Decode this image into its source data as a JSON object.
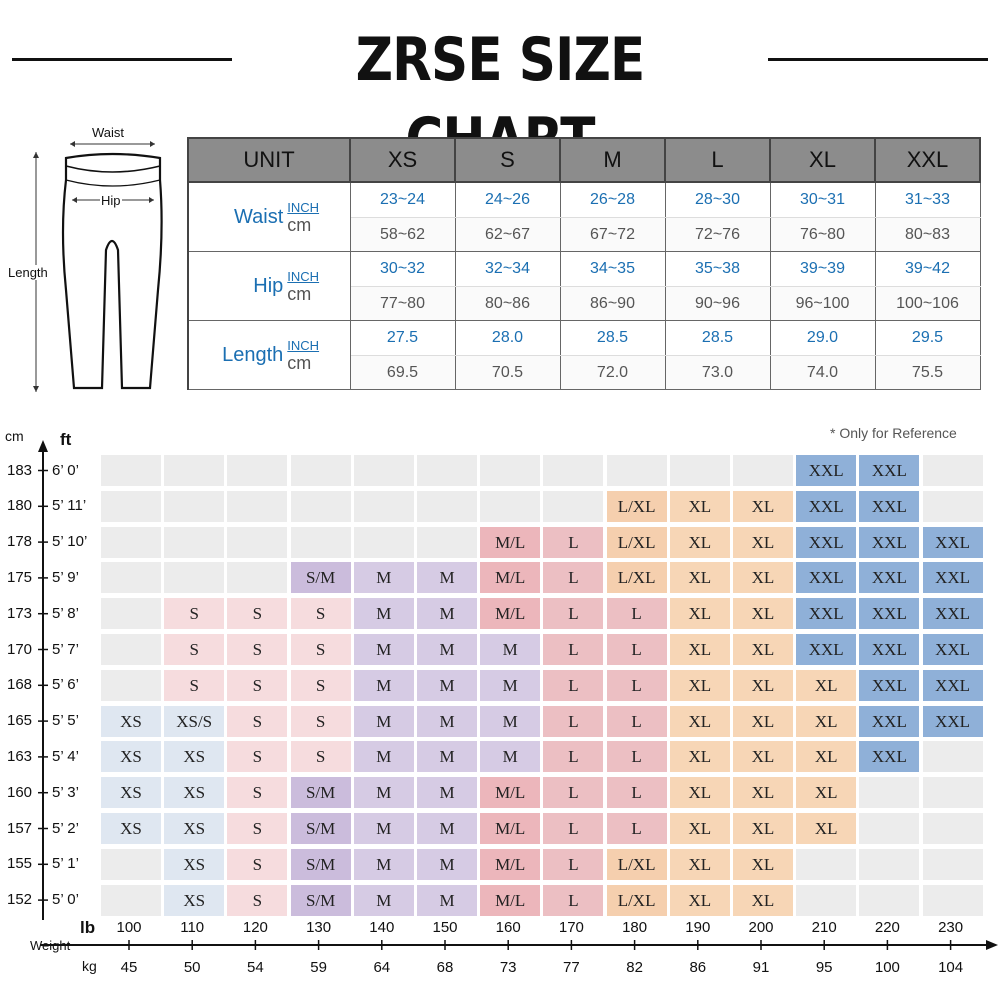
{
  "title": "ZRSE SIZE CHART",
  "diagram": {
    "waist_label": "Waist",
    "hip_label": "Hip",
    "length_label": "Length"
  },
  "table": {
    "unit_header": "UNIT",
    "sizes": [
      "XS",
      "S",
      "M",
      "L",
      "XL",
      "XXL"
    ],
    "inch_label": "INCH",
    "cm_label": "cm",
    "rows": [
      {
        "name": "Waist",
        "inch": [
          "23~24",
          "24~26",
          "26~28",
          "28~30",
          "30~31",
          "31~33"
        ],
        "cm": [
          "58~62",
          "62~67",
          "67~72",
          "72~76",
          "76~80",
          "80~83"
        ]
      },
      {
        "name": "Hip",
        "inch": [
          "30~32",
          "32~34",
          "34~35",
          "35~38",
          "39~39",
          "39~42"
        ],
        "cm": [
          "77~80",
          "80~86",
          "86~90",
          "90~96",
          "96~100",
          "100~106"
        ]
      },
      {
        "name": "Length",
        "inch": [
          "27.5",
          "28.0",
          "28.5",
          "28.5",
          "29.0",
          "29.5"
        ],
        "cm": [
          "69.5",
          "70.5",
          "72.0",
          "73.0",
          "74.0",
          "75.5"
        ]
      }
    ]
  },
  "grid": {
    "note": "* Only for Reference",
    "cm_axis_label": "cm",
    "ft_axis_label": "ft",
    "lb_axis_label": "lb",
    "weight_label": "Weight",
    "kg_axis_label": "kg",
    "heights": [
      {
        "cm": "183",
        "ft": "6’ 0’"
      },
      {
        "cm": "180",
        "ft": "5’ 11’"
      },
      {
        "cm": "178",
        "ft": "5’ 10’"
      },
      {
        "cm": "175",
        "ft": "5’ 9’"
      },
      {
        "cm": "173",
        "ft": "5’ 8’"
      },
      {
        "cm": "170",
        "ft": "5’ 7’"
      },
      {
        "cm": "168",
        "ft": "5’ 6’"
      },
      {
        "cm": "165",
        "ft": "5’ 5’"
      },
      {
        "cm": "163",
        "ft": "5’ 4’"
      },
      {
        "cm": "160",
        "ft": "5’ 3’"
      },
      {
        "cm": "157",
        "ft": "5’ 2’"
      },
      {
        "cm": "155",
        "ft": "5’ 1’"
      },
      {
        "cm": "152",
        "ft": "5’ 0’"
      }
    ],
    "weights_lb": [
      "100",
      "110",
      "120",
      "130",
      "140",
      "150",
      "160",
      "170",
      "180",
      "190",
      "200",
      "210",
      "220",
      "230"
    ],
    "weights_kg": [
      "45",
      "50",
      "54",
      "59",
      "64",
      "68",
      "73",
      "77",
      "82",
      "86",
      "91",
      "95",
      "100",
      "104"
    ],
    "cells": [
      [
        "",
        "",
        "",
        "",
        "",
        "",
        "",
        "",
        "",
        "",
        "",
        "XXL",
        "XXL",
        ""
      ],
      [
        "",
        "",
        "",
        "",
        "",
        "",
        "",
        "",
        "L/XL",
        "XL",
        "XL",
        "XXL",
        "XXL",
        ""
      ],
      [
        "",
        "",
        "",
        "",
        "",
        "",
        "M/L",
        "L",
        "L/XL",
        "XL",
        "XL",
        "XXL",
        "XXL",
        "XXL"
      ],
      [
        "",
        "",
        "",
        "S/M",
        "M",
        "M",
        "M/L",
        "L",
        "L/XL",
        "XL",
        "XL",
        "XXL",
        "XXL",
        "XXL"
      ],
      [
        "",
        "S",
        "S",
        "S",
        "M",
        "M",
        "M/L",
        "L",
        "L",
        "XL",
        "XL",
        "XXL",
        "XXL",
        "XXL"
      ],
      [
        "",
        "S",
        "S",
        "S",
        "M",
        "M",
        "M",
        "L",
        "L",
        "XL",
        "XL",
        "XXL",
        "XXL",
        "XXL"
      ],
      [
        "",
        "S",
        "S",
        "S",
        "M",
        "M",
        "M",
        "L",
        "L",
        "XL",
        "XL",
        "XL",
        "XXL",
        "XXL"
      ],
      [
        "XS",
        "XS/S",
        "S",
        "S",
        "M",
        "M",
        "M",
        "L",
        "L",
        "XL",
        "XL",
        "XL",
        "XXL",
        "XXL"
      ],
      [
        "XS",
        "XS",
        "S",
        "S",
        "M",
        "M",
        "M",
        "L",
        "L",
        "XL",
        "XL",
        "XL",
        "XXL",
        ""
      ],
      [
        "XS",
        "XS",
        "S",
        "S/M",
        "M",
        "M",
        "M/L",
        "L",
        "L",
        "XL",
        "XL",
        "XL",
        "",
        ""
      ],
      [
        "XS",
        "XS",
        "S",
        "S/M",
        "M",
        "M",
        "M/L",
        "L",
        "L",
        "XL",
        "XL",
        "XL",
        "",
        ""
      ],
      [
        "",
        "XS",
        "S",
        "S/M",
        "M",
        "M",
        "M/L",
        "L",
        "L/XL",
        "XL",
        "XL",
        "",
        "",
        ""
      ],
      [
        "",
        "XS",
        "S",
        "S/M",
        "M",
        "M",
        "M/L",
        "L",
        "L/XL",
        "XL",
        "XL",
        "",
        "",
        ""
      ]
    ]
  }
}
